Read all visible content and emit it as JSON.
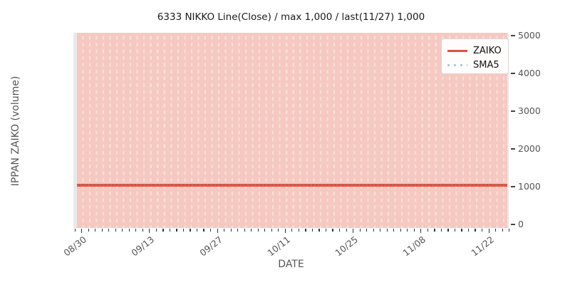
{
  "title": "6333 NIKKO Line(Close) / max 1,000 / last(11/27) 1,000",
  "axes": {
    "x_label": "DATE",
    "y_label": "IPPAN ZAIKO (volume)",
    "y_tick_labels": [
      "0",
      "1000",
      "2000",
      "3000",
      "4000",
      "5000"
    ],
    "x_tick_labels": [
      "08/30",
      "09/13",
      "09/27",
      "10/11",
      "10/25",
      "11/08",
      "11/22"
    ]
  },
  "legend": {
    "position": "upper right",
    "items": [
      {
        "label": "ZAIKO",
        "color": "#e0503c",
        "style": "solid"
      },
      {
        "label": "SMA5",
        "color": "#a9cce5",
        "style": "dotted"
      }
    ]
  },
  "colors": {
    "background_bars": "#f5c9c1",
    "bar_separator_dash": "#f9dfd9",
    "plot_background": "#e9e9e9",
    "zaiko_line": "#e0503c",
    "sma5_dots": "#a9cce5",
    "sma5_dots_over_red": "#8d8298",
    "tick_text": "#555555",
    "title_text": "#1a1a1a"
  },
  "chart_data": {
    "type": "line",
    "title": "6333 NIKKO Line(Close) / max 1,000 / last(11/27) 1,000",
    "xlabel": "DATE",
    "ylabel": "IPPAN ZAIKO (volume)",
    "ylim": [
      0,
      5000
    ],
    "y_ticks": [
      0,
      1000,
      2000,
      3000,
      4000,
      5000
    ],
    "x_tick_labels": [
      "08/30",
      "09/13",
      "09/27",
      "10/11",
      "10/25",
      "11/08",
      "11/22"
    ],
    "x_minor_tick_interval": "1 trading day",
    "x_major_tick_interval": "10 trading days",
    "last_date": "11/27",
    "last_value": 1000,
    "max_value": 1000,
    "series": [
      {
        "name": "ZAIKO",
        "style": "solid line",
        "color": "#e0503c",
        "constant_value": 1000
      },
      {
        "name": "SMA5",
        "style": "dotted line",
        "color": "#a9cce5",
        "constant_value": 1000
      }
    ],
    "background_bars": {
      "description": "full-height salmon bars for every trading day 08/30–11/27",
      "count_approx": 64,
      "color": "#f5c9c1",
      "full_height": true
    },
    "grid": "white dashed vertical separators per bar",
    "legend_position": "upper right",
    "y_axis_side": "right"
  }
}
